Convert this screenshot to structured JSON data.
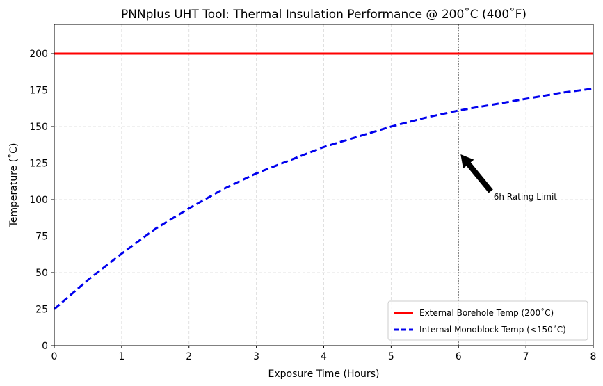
{
  "chart_data": {
    "type": "line",
    "title": "PNNplus UHT Tool: Thermal Insulation Performance @ 200˚C (400˚F)",
    "xlabel": "Exposure Time (Hours)",
    "ylabel": "Temperature (˚C)",
    "xlim": [
      0,
      8
    ],
    "ylim": [
      0,
      220
    ],
    "x_ticks": [
      0,
      1,
      2,
      3,
      4,
      5,
      6,
      7,
      8
    ],
    "y_ticks": [
      0,
      25,
      50,
      75,
      100,
      125,
      150,
      175,
      200
    ],
    "grid": true,
    "legend_position": "lower-right",
    "series": [
      {
        "name": "External Borehole Temp (200˚C)",
        "color": "#ff0000",
        "style": "solid",
        "x": [
          0,
          8
        ],
        "y": [
          200,
          200
        ]
      },
      {
        "name": "Internal Monoblock Temp (<150˚C)",
        "color": "#0000ee",
        "style": "dashed",
        "x": [
          0,
          0.5,
          1,
          1.5,
          2,
          2.5,
          3,
          3.5,
          4,
          4.5,
          5,
          5.5,
          6,
          6.5,
          7,
          7.5,
          8
        ],
        "y": [
          25,
          45,
          63,
          80,
          94,
          107,
          118,
          127,
          136,
          143,
          150,
          156,
          161,
          165,
          169,
          173,
          176
        ]
      }
    ],
    "vline": {
      "x": 6,
      "color": "#888888",
      "style": "dotted"
    },
    "annotations": [
      {
        "text": "6h Rating Limit",
        "xy": [
          6,
          130
        ],
        "text_xy": [
          6.5,
          100
        ]
      }
    ]
  }
}
